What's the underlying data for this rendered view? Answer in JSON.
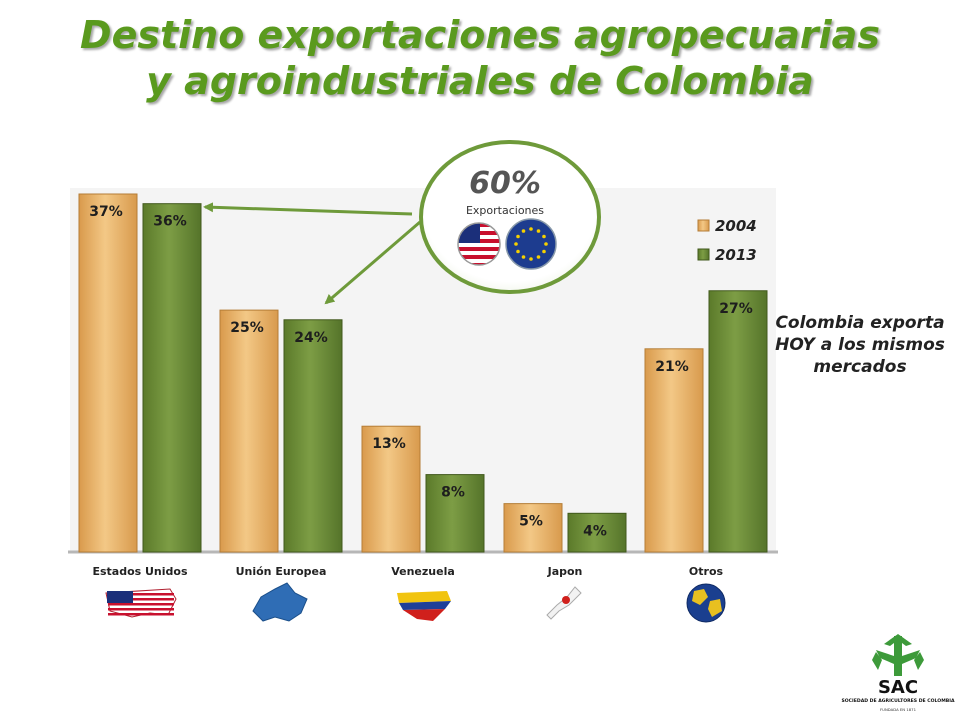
{
  "title": {
    "line1": "Destino exportaciones agropecuarias",
    "line2": "y agroindustriales de Colombia"
  },
  "callout": {
    "percent": "60%",
    "label": "Exportaciones",
    "flag_icons": [
      "usa-flag-icon",
      "eu-flag-icon"
    ]
  },
  "side_note": "Colombia exporta HOY a los mismos mercados",
  "logo": {
    "text": "SAC",
    "subtitle": "SOCIEDAD DE AGRICULTORES DE COLOMBIA",
    "founded": "FUNDADA EN 1871"
  },
  "colors": {
    "title": "#5a9a1e",
    "bar_2004": "#e9b26a",
    "bar_2013": "#6b8b35",
    "arrow": "#6e9a3a",
    "logo_green": "#3d9a3a"
  },
  "chart_data": {
    "type": "bar",
    "categories": [
      "Estados Unidos",
      "Unión Europea",
      "Venezuela",
      "Japon",
      "Otros"
    ],
    "category_icons": [
      "usa-map-icon",
      "europe-map-icon",
      "venezuela-map-icon",
      "japan-map-icon",
      "globe-icon"
    ],
    "series": [
      {
        "name": "2004",
        "values": [
          37,
          25,
          13,
          5,
          21
        ],
        "labels": [
          "37%",
          "25%",
          "13%",
          "5%",
          "21%"
        ],
        "color": "#e9b26a"
      },
      {
        "name": "2013",
        "values": [
          36,
          24,
          8,
          4,
          27
        ],
        "labels": [
          "36%",
          "24%",
          "8%",
          "4%",
          "27%"
        ],
        "color": "#6b8b35"
      }
    ],
    "ylim": [
      0,
      37
    ],
    "grid": false,
    "legend": "top-right",
    "title": "",
    "xlabel": "",
    "ylabel": ""
  }
}
